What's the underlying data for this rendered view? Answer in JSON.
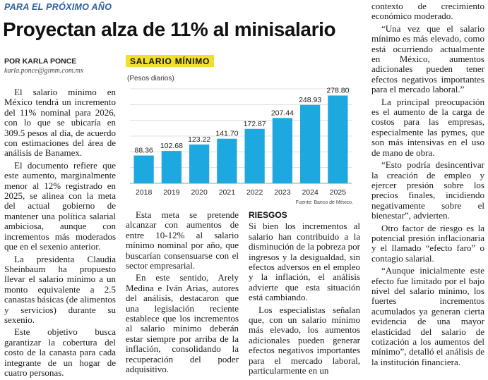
{
  "kicker": "PARA EL PRÓXIMO AÑO",
  "headline": "Proyectan alza de 11% al minisalario",
  "byline": "POR KARLA PONCE",
  "email": "karla.ponce@gimm.com.mx",
  "chart_label": "SALARIO MÍNIMO",
  "chart_unit": "(Pesos diarios)",
  "chart_source": "Fuente: Banco de México.",
  "chart_data": {
    "type": "bar",
    "title": "SALARIO MÍNIMO",
    "subtitle": "(Pesos diarios)",
    "categories": [
      "2018",
      "2019",
      "2020",
      "2021",
      "2022",
      "2023",
      "2024",
      "2025"
    ],
    "values": [
      88.36,
      102.68,
      123.22,
      141.7,
      172.87,
      207.44,
      248.93,
      278.8
    ],
    "value_labels": [
      "88.36",
      "102.68",
      "123.22",
      "141.70",
      "172.87",
      "207.44",
      "248.93",
      "278.80"
    ],
    "ylim": [
      0,
      300
    ],
    "grid": true,
    "bar_color": "#1ea8e0",
    "xlabel": "",
    "ylabel": ""
  },
  "col1": [
    "El salario mínimo en México tendrá un incremento del 11% nominal para 2026, con lo que se ubicaría en 309.5 pesos al día, de acuerdo con estimaciones del área de análisis de Banamex.",
    "El documento refiere que este aumento, marginalmente menor al 12% registrado en 2025, se alinea con la meta del actual gobierno de mantener una política salarial ambiciosa, aunque con incrementos más moderados que en el sexenio anterior.",
    "La presidenta Claudia Sheinbaum ha propuesto llevar el salario mínimo a un monto equivalente a 2.5 canastas básicas (de alimentos y servicios) durante su sexenio.",
    "Este objetivo busca garantizar la cobertura del costo de la canasta para cada integrante de un hogar de cuatro personas."
  ],
  "col2": [
    "Esta meta se pretende alcanzar con aumentos de entre 10-12% al salario mínimo nominal por año, que buscarían consensuarse con el sector empresarial.",
    "En este sentido, Arely Medina e Iván Arias, autores del análisis, destacaron que una legislación reciente establece que los incrementos al salario mínimo deberán estar siempre por arriba de la inflación, consolidando la recuperación del poder adquisitivo."
  ],
  "col3_heading": "RIESGOS",
  "col3": [
    "Si bien los incrementos al salario han contribuido a la disminución de la pobreza por ingresos y la desigualdad, sin efectos adversos en el empleo y la inflación, el análisis advierte que esta situación está cambiando.",
    "Los especialistas señalan que, con un salario mínimo más elevado, los aumentos adicionales pueden generar efectos negativos importantes para el mercado laboral, particularmente en un"
  ],
  "col4_lead": "contexto de crecimiento económico moderado.",
  "col4": [
    "“Una vez que el salario mínimo es más elevado, como está ocurriendo actualmente en México, aumentos adicionales pueden tener efectos negativos importantes para el mercado laboral.”",
    "La principal preocupación es el aumento de la carga de costos para las empresas, especialmente las pymes, que son más intensivas en el uso de mano de obra.",
    "“Esto podría desincentivar la creación de empleo y ejercer presión sobre los precios finales, incidiendo negativamente sobre el bienestar”, advierten.",
    "Otro factor de riesgo es la potencial presión inflacionaria y el llamado “efecto faro” o contagio salarial.",
    "“Aunque inicialmente este efecto fue limitado por el bajo nivel del salario mínimo, los fuertes incrementos acumulados ya generan cierta evidencia de una mayor elasticidad del salario de cotización a los aumentos del mínimo”, detalló el análisis de la institución financiera."
  ]
}
